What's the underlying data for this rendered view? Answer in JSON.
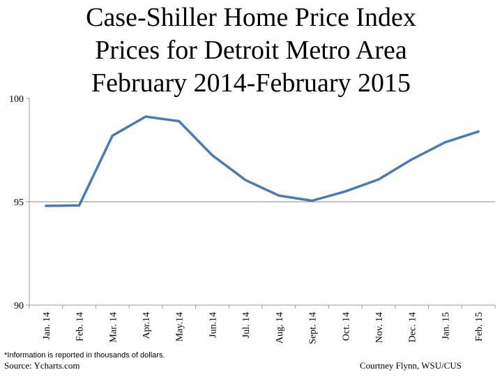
{
  "title_lines": [
    "Case-Shiller Home Price Index",
    "Prices for Detroit Metro Area",
    "February 2014-February 2015"
  ],
  "footnote": "*Information is reported in thousands of dollars.",
  "source": "Source: Ycharts.com",
  "credit": "Courtney Flynn, WSU/CUS",
  "colors": {
    "line": "#4a7ab5",
    "axis": "#999999",
    "grid": "#888888"
  },
  "chart_data": {
    "type": "line",
    "categories": [
      "Jan. 14",
      "Feb. 14",
      "Mar. 14",
      "Apr.14",
      "May.14",
      "Jun.14",
      "Jul. 14",
      "Aug. 14",
      "Sept. 14",
      "Oct. 14",
      "Nov. 14",
      "Dec. 14",
      "Jan. 15",
      "Feb. 15"
    ],
    "series": [
      {
        "values": [
          94.8,
          94.82,
          98.2,
          99.12,
          98.9,
          97.25,
          96.05,
          95.3,
          95.05,
          95.5,
          96.08,
          97.05,
          97.88,
          98.4
        ]
      }
    ],
    "ylim": [
      90,
      100
    ],
    "yticks": [
      90,
      95,
      100
    ],
    "gridlines": [
      95
    ],
    "legend": "none"
  }
}
